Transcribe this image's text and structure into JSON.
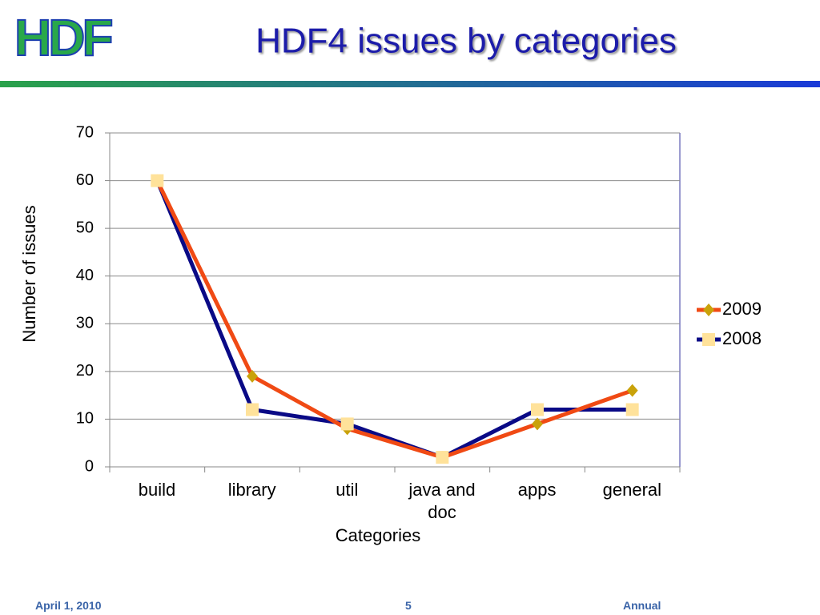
{
  "logo": "HDF",
  "footer": {
    "date": "April 1, 2010",
    "page": "5",
    "event": "Annual"
  },
  "chart_data": {
    "type": "line",
    "title": "HDF4 issues by categories",
    "x_label": "Categories",
    "y_label": "Number of issues",
    "categories": [
      "build",
      "library",
      "util",
      "java and doc",
      "apps",
      "general"
    ],
    "series": [
      {
        "name": "2009",
        "color": "#f04a14",
        "marker": "diamond",
        "marker_color": "#c9a20a",
        "values": [
          60,
          19,
          8,
          2,
          9,
          16
        ]
      },
      {
        "name": "2008",
        "color": "#0a0a86",
        "marker": "square",
        "marker_color": "#ffe29a",
        "values": [
          60,
          12,
          9,
          2,
          12,
          12
        ]
      }
    ],
    "ylim": [
      0,
      70
    ],
    "yticks": [
      0,
      10,
      20,
      30,
      40,
      50,
      60,
      70
    ],
    "grid": true,
    "legend": "right"
  }
}
